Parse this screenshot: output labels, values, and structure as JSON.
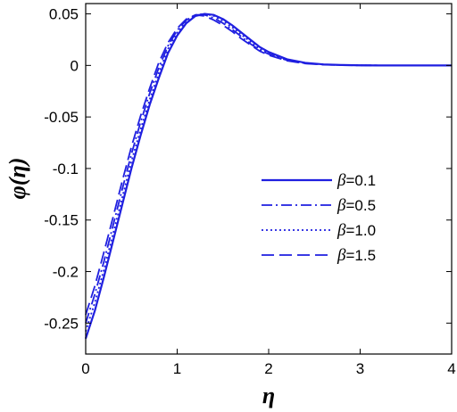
{
  "chart_data": {
    "type": "line",
    "xlabel": "η",
    "ylabel": "φ(η)",
    "xlim": [
      0,
      4
    ],
    "ylim": [
      -0.28,
      0.06
    ],
    "xticks": [
      "0",
      "1",
      "2",
      "3",
      "4"
    ],
    "yticks": [
      "0.05",
      "0",
      "-0.05",
      "-0.1",
      "-0.15",
      "-0.2",
      "-0.25"
    ],
    "grid": false,
    "legend_position": "center-right",
    "line_color": "#1f1fe0",
    "series": [
      {
        "name": "β=0.1",
        "style": "solid",
        "x": [
          0,
          0.1,
          0.2,
          0.3,
          0.4,
          0.5,
          0.6,
          0.7,
          0.8,
          0.9,
          1.0,
          1.1,
          1.2,
          1.3,
          1.4,
          1.5,
          1.6,
          1.7,
          1.8,
          1.9,
          2.0,
          2.2,
          2.4,
          2.6,
          2.8,
          3.0,
          3.2,
          3.5,
          4.0
        ],
        "y": [
          -0.265,
          -0.238,
          -0.205,
          -0.17,
          -0.135,
          -0.1,
          -0.068,
          -0.038,
          -0.012,
          0.012,
          0.029,
          0.041,
          0.048,
          0.05,
          0.049,
          0.045,
          0.039,
          0.032,
          0.025,
          0.018,
          0.013,
          0.006,
          0.0025,
          0.001,
          0.0004,
          0.0001,
          0,
          0,
          0
        ]
      },
      {
        "name": "β=0.5",
        "style": "dashdot",
        "x": [
          0,
          0.1,
          0.2,
          0.3,
          0.4,
          0.5,
          0.6,
          0.7,
          0.8,
          0.9,
          1.0,
          1.1,
          1.2,
          1.3,
          1.4,
          1.5,
          1.6,
          1.7,
          1.8,
          1.9,
          2.0,
          2.2,
          2.4,
          2.6,
          2.8,
          3.0,
          3.2,
          3.5,
          4.0
        ],
        "y": [
          -0.25,
          -0.222,
          -0.19,
          -0.155,
          -0.12,
          -0.086,
          -0.055,
          -0.027,
          -0.002,
          0.019,
          0.034,
          0.044,
          0.049,
          0.049,
          0.046,
          0.041,
          0.035,
          0.028,
          0.021,
          0.015,
          0.011,
          0.005,
          0.002,
          0.0008,
          0.0003,
          0.0001,
          0,
          0,
          0
        ]
      },
      {
        "name": "β=1.0",
        "style": "dotted",
        "x": [
          0,
          0.1,
          0.2,
          0.3,
          0.4,
          0.5,
          0.6,
          0.7,
          0.8,
          0.9,
          1.0,
          1.1,
          1.2,
          1.3,
          1.4,
          1.5,
          1.6,
          1.7,
          1.8,
          1.9,
          2.0,
          2.2,
          2.4,
          2.6,
          2.8,
          3.0,
          3.2,
          3.5,
          4.0
        ],
        "y": [
          -0.258,
          -0.23,
          -0.198,
          -0.163,
          -0.128,
          -0.093,
          -0.062,
          -0.033,
          -0.007,
          0.016,
          0.032,
          0.043,
          0.049,
          0.05,
          0.048,
          0.043,
          0.037,
          0.03,
          0.023,
          0.016,
          0.012,
          0.0055,
          0.0022,
          0.0009,
          0.0003,
          0.0001,
          0,
          0,
          0
        ]
      },
      {
        "name": "β=1.5",
        "style": "dashed",
        "x": [
          0,
          0.1,
          0.2,
          0.3,
          0.4,
          0.5,
          0.6,
          0.7,
          0.8,
          0.9,
          1.0,
          1.1,
          1.2,
          1.3,
          1.4,
          1.5,
          1.6,
          1.7,
          1.8,
          1.9,
          2.0,
          2.2,
          2.4,
          2.6,
          2.8,
          3.0,
          3.2,
          3.5,
          4.0
        ],
        "y": [
          -0.242,
          -0.214,
          -0.181,
          -0.147,
          -0.112,
          -0.079,
          -0.049,
          -0.022,
          0.003,
          0.022,
          0.036,
          0.045,
          0.049,
          0.048,
          0.044,
          0.039,
          0.033,
          0.026,
          0.02,
          0.014,
          0.01,
          0.0045,
          0.0018,
          0.0007,
          0.0002,
          0.0001,
          0,
          0,
          0
        ]
      }
    ]
  }
}
